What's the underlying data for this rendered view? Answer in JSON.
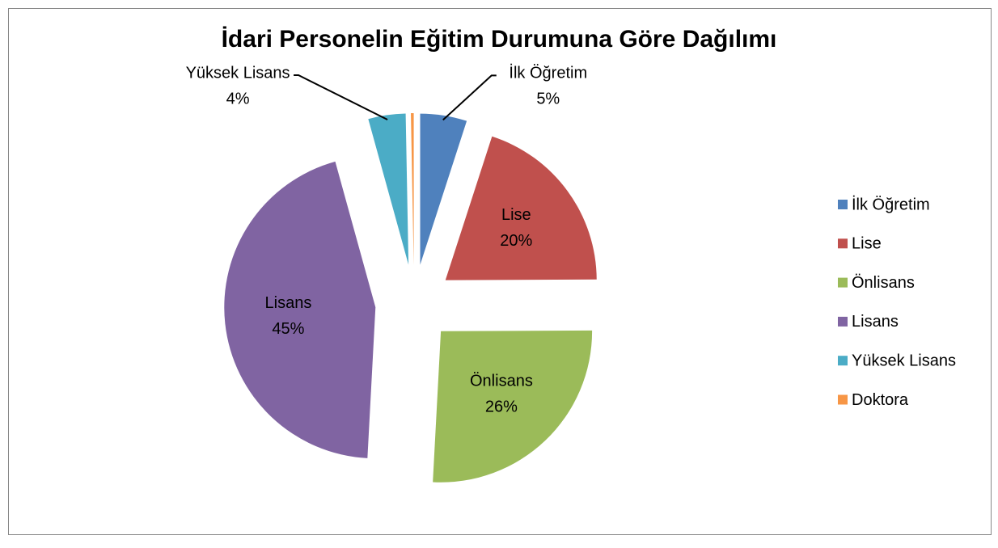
{
  "chart_data": {
    "type": "pie",
    "title": "İdari Personelin Eğitim Durumuna Göre Dağılımı",
    "categories": [
      "İlk Öğretim",
      "Lise",
      "Önlisans",
      "Lisans",
      "Yüksek Lisans",
      "Doktora"
    ],
    "values": [
      5,
      20,
      26,
      45,
      4,
      0.3
    ],
    "value_labels": [
      "5%",
      "20%",
      "26%",
      "45%",
      "4%",
      null
    ],
    "colors": [
      "#4f81bd",
      "#c0504d",
      "#9bbb59",
      "#8064a2",
      "#4bacc6",
      "#f79646"
    ],
    "exploded": true,
    "legend": "right"
  }
}
